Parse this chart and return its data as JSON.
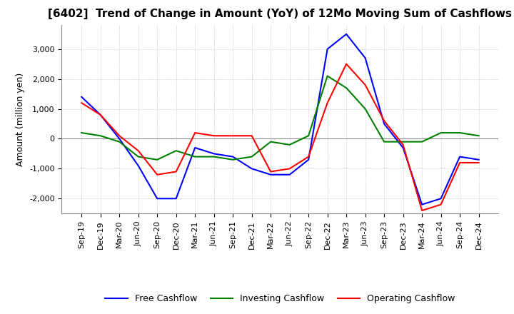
{
  "title": "[6402]  Trend of Change in Amount (YoY) of 12Mo Moving Sum of Cashflows",
  "ylabel": "Amount (million yen)",
  "background_color": "#ffffff",
  "grid_color": "#b0b0b0",
  "title_fontsize": 11,
  "axis_label_fontsize": 9,
  "tick_label_fontsize": 8,
  "ylim": [
    -2500,
    3800
  ],
  "yticks": [
    -2000,
    -1000,
    0,
    1000,
    2000,
    3000
  ],
  "x_labels": [
    "Sep-19",
    "Dec-19",
    "Mar-20",
    "Jun-20",
    "Sep-20",
    "Dec-20",
    "Mar-21",
    "Jun-21",
    "Sep-21",
    "Dec-21",
    "Mar-22",
    "Jun-22",
    "Sep-22",
    "Dec-22",
    "Mar-23",
    "Jun-23",
    "Sep-23",
    "Dec-23",
    "Mar-24",
    "Jun-24",
    "Sep-24",
    "Dec-24"
  ],
  "operating_cashflow": [
    1200,
    800,
    100,
    -400,
    -1200,
    -1100,
    200,
    100,
    100,
    100,
    -1100,
    -1000,
    -600,
    1200,
    2500,
    1800,
    600,
    -200,
    -2400,
    -2200,
    -800,
    -800
  ],
  "investing_cashflow": [
    200,
    100,
    -100,
    -600,
    -700,
    -400,
    -600,
    -600,
    -700,
    -600,
    -100,
    -200,
    100,
    2100,
    1700,
    1000,
    -100,
    -100,
    -100,
    200,
    200,
    100
  ],
  "free_cashflow": [
    1400,
    800,
    0,
    -900,
    -2000,
    -2000,
    -300,
    -500,
    -600,
    -1000,
    -1200,
    -1200,
    -700,
    3000,
    3500,
    2700,
    500,
    -300,
    -2200,
    -2000,
    -600,
    -700
  ],
  "line_colors": {
    "operating": "#ff0000",
    "investing": "#008000",
    "free": "#0000ff"
  },
  "legend_labels": [
    "Operating Cashflow",
    "Investing Cashflow",
    "Free Cashflow"
  ]
}
